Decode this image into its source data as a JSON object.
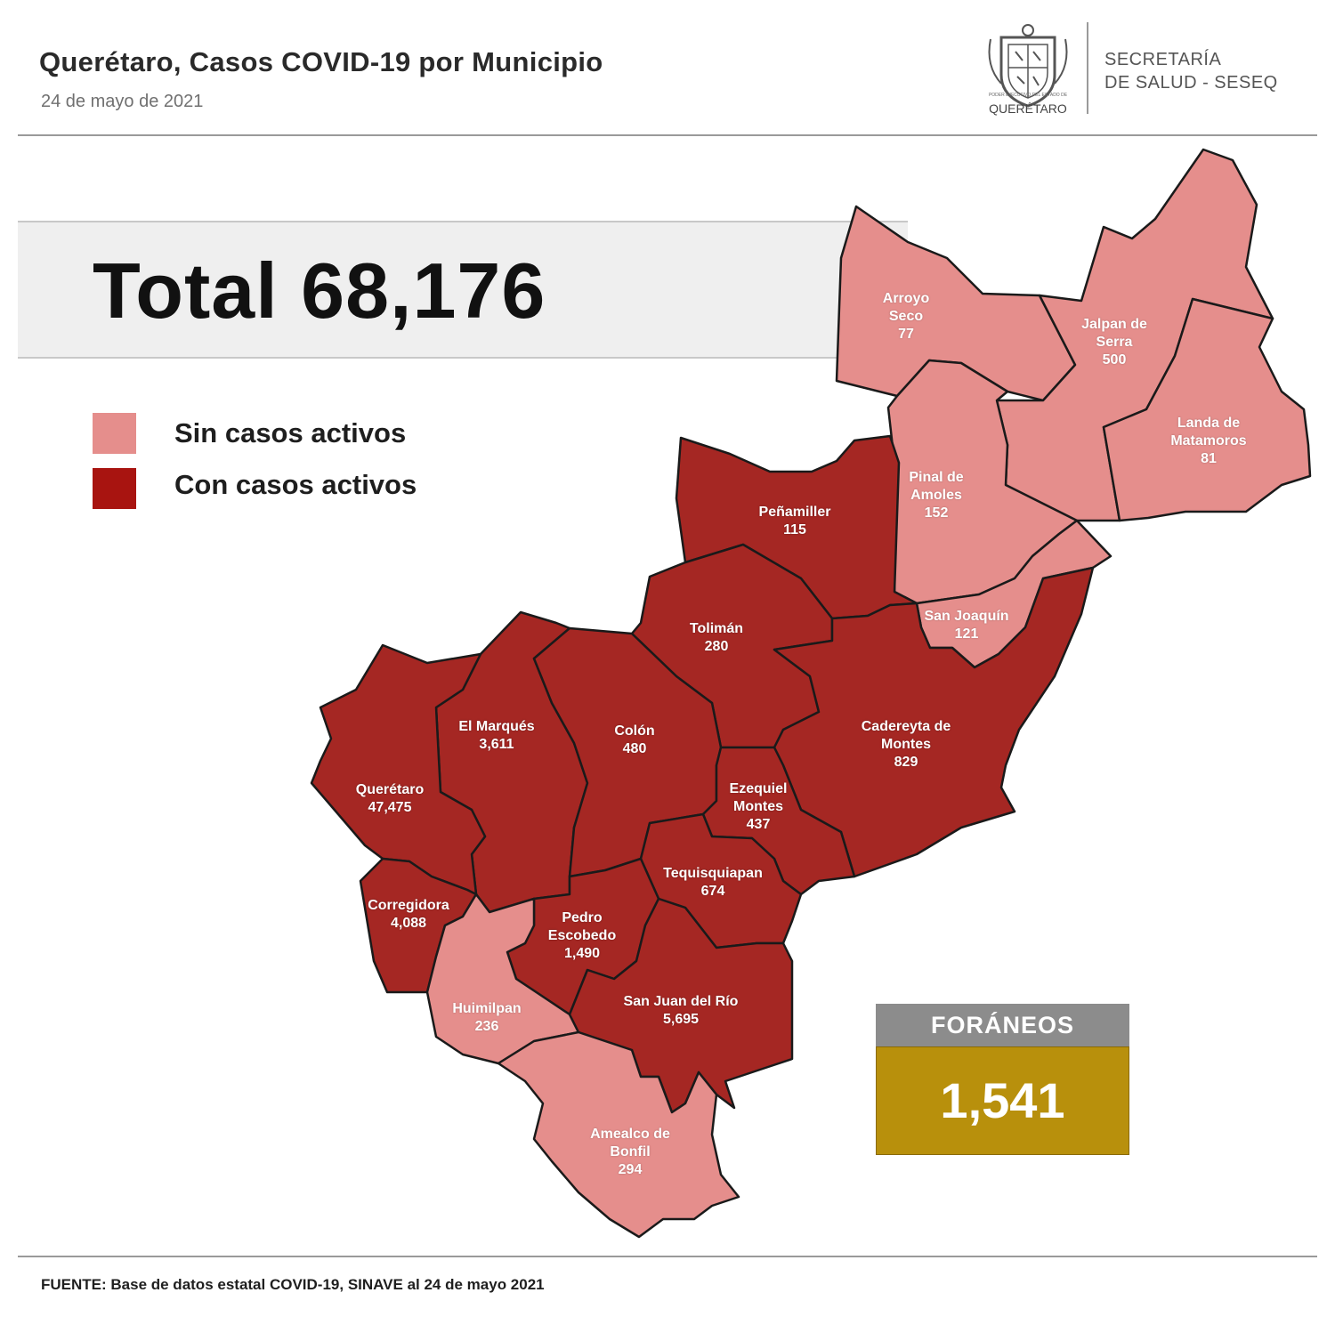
{
  "header": {
    "title": "Querétaro, Casos COVID-19 por Municipio",
    "date": "24 de mayo de 2021",
    "logo_text": "QUERÉTARO",
    "logo_small_text": "PODER EJECUTIVO DEL ESTADO DE",
    "department_line1": "SECRETARÍA",
    "department_line2": "DE SALUD - SESEQ"
  },
  "total": {
    "label": "Total 68,176"
  },
  "legend": [
    {
      "label": "Sin casos activos",
      "color": "#e58e8c"
    },
    {
      "label": "Con casos activos",
      "color": "#a81410"
    }
  ],
  "colors": {
    "inactive": "#e58e8c",
    "active": "#a52723",
    "border": "#1a1a1a"
  },
  "municipalities": [
    {
      "name": "Arroyo\nSeco",
      "cases": "77",
      "status": "inactive"
    },
    {
      "name": "Jalpan de\nSerra",
      "cases": "500",
      "status": "inactive"
    },
    {
      "name": "Landa de\nMatamoros",
      "cases": "81",
      "status": "inactive"
    },
    {
      "name": "Pinal de\nAmoles",
      "cases": "152",
      "status": "inactive"
    },
    {
      "name": "San Joaquín",
      "cases": "121",
      "status": "inactive"
    },
    {
      "name": "Peñamiller",
      "cases": "115",
      "status": "active"
    },
    {
      "name": "Tolimán",
      "cases": "280",
      "status": "active"
    },
    {
      "name": "Cadereyta de\nMontes",
      "cases": "829",
      "status": "active"
    },
    {
      "name": "El  Marqués",
      "cases": "3,611",
      "status": "active"
    },
    {
      "name": "Colón",
      "cases": "480",
      "status": "active"
    },
    {
      "name": "Querétaro",
      "cases": "47,475",
      "status": "active"
    },
    {
      "name": "Ezequiel\nMontes",
      "cases": "437",
      "status": "active"
    },
    {
      "name": "Tequisquiapan",
      "cases": "674",
      "status": "active"
    },
    {
      "name": "Corregidora",
      "cases": "4,088",
      "status": "active"
    },
    {
      "name": "Pedro\nEscobedo",
      "cases": "1,490",
      "status": "active"
    },
    {
      "name": "Huimilpan",
      "cases": "236",
      "status": "inactive"
    },
    {
      "name": "San Juan del Río",
      "cases": "5,695",
      "status": "active"
    },
    {
      "name": "Amealco de\nBonfil",
      "cases": "294",
      "status": "inactive"
    }
  ],
  "foraneos": {
    "label": "FORÁNEOS",
    "value": "1,541"
  },
  "source": "FUENTE:  Base de datos estatal COVID-19,  SINAVE  al 24 de mayo 2021"
}
